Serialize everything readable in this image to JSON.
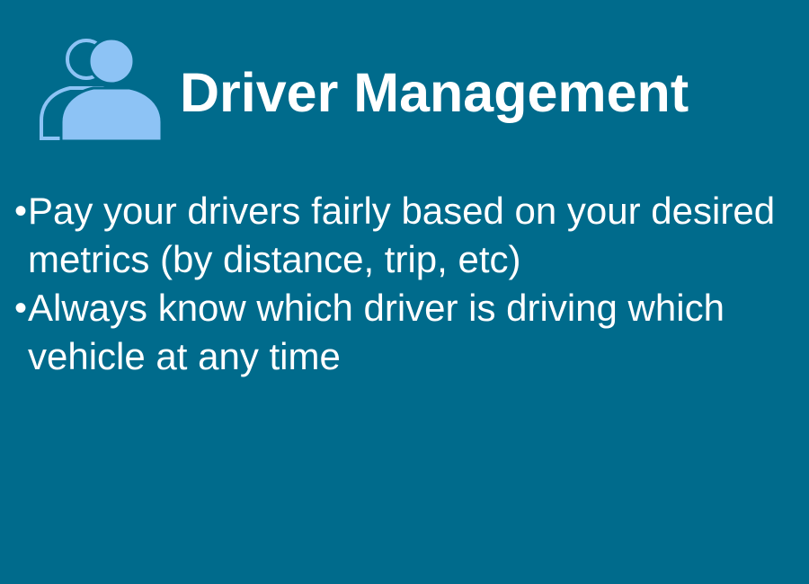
{
  "slide": {
    "title": "Driver Management",
    "icon": "person-icon",
    "bullets": [
      {
        "symbol": "•",
        "text": "Pay your drivers fairly based on your desired metrics (by distance, trip, etc)"
      },
      {
        "symbol": "•",
        "text": "Always know which driver is driving which vehicle at any time"
      }
    ]
  },
  "colors": {
    "background": "#006b8c",
    "text": "#ffffff",
    "icon": "#8dc3f5"
  }
}
